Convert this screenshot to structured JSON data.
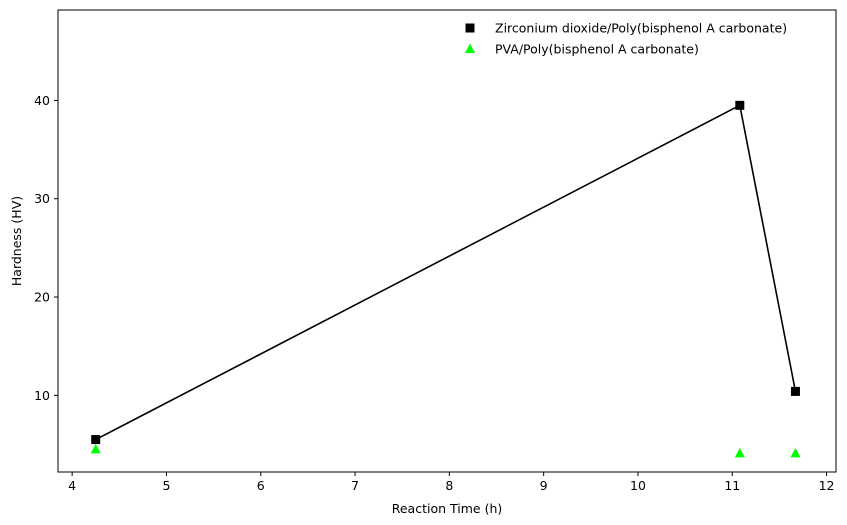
{
  "chart_data": {
    "type": "scatter",
    "xlabel": "Reaction Time (h)",
    "ylabel": "Hardness (HV)",
    "xlim": [
      3.85,
      12.1
    ],
    "ylim": [
      2.2,
      49.2
    ],
    "xticks": [
      4,
      5,
      6,
      7,
      8,
      9,
      10,
      11,
      12
    ],
    "yticks": [
      10,
      20,
      30,
      40
    ],
    "grid": false,
    "legend_position": "top-right",
    "series": [
      {
        "name": "Zirconium dioxide/Poly(bisphenol A carbonate)",
        "marker": "square",
        "color": "#000000",
        "connected": true,
        "x": [
          4.25,
          11.08,
          11.67
        ],
        "y": [
          5.5,
          39.5,
          10.4
        ]
      },
      {
        "name": "PVA/Poly(bisphenol A carbonate)",
        "marker": "triangle",
        "color": "#00ff00",
        "connected": false,
        "x": [
          4.25,
          11.08,
          11.67
        ],
        "y": [
          4.5,
          4.1,
          4.1
        ]
      }
    ]
  }
}
